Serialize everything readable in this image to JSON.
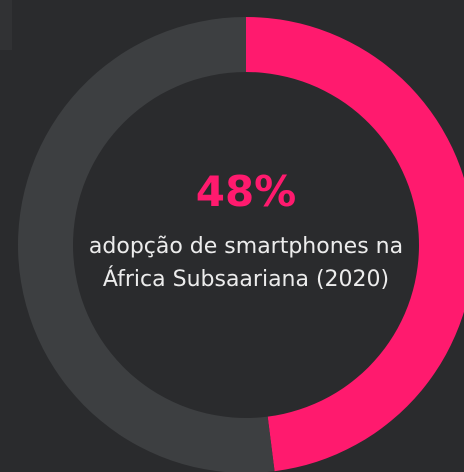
{
  "chart_data": {
    "type": "donut",
    "values": [
      48,
      52
    ],
    "value_labels": [
      "48%",
      null
    ],
    "colors": [
      "#ff1a6e",
      "#3d3f41"
    ],
    "subtitle": "adopção de smartphones na África Subsaariana (2020)"
  }
}
